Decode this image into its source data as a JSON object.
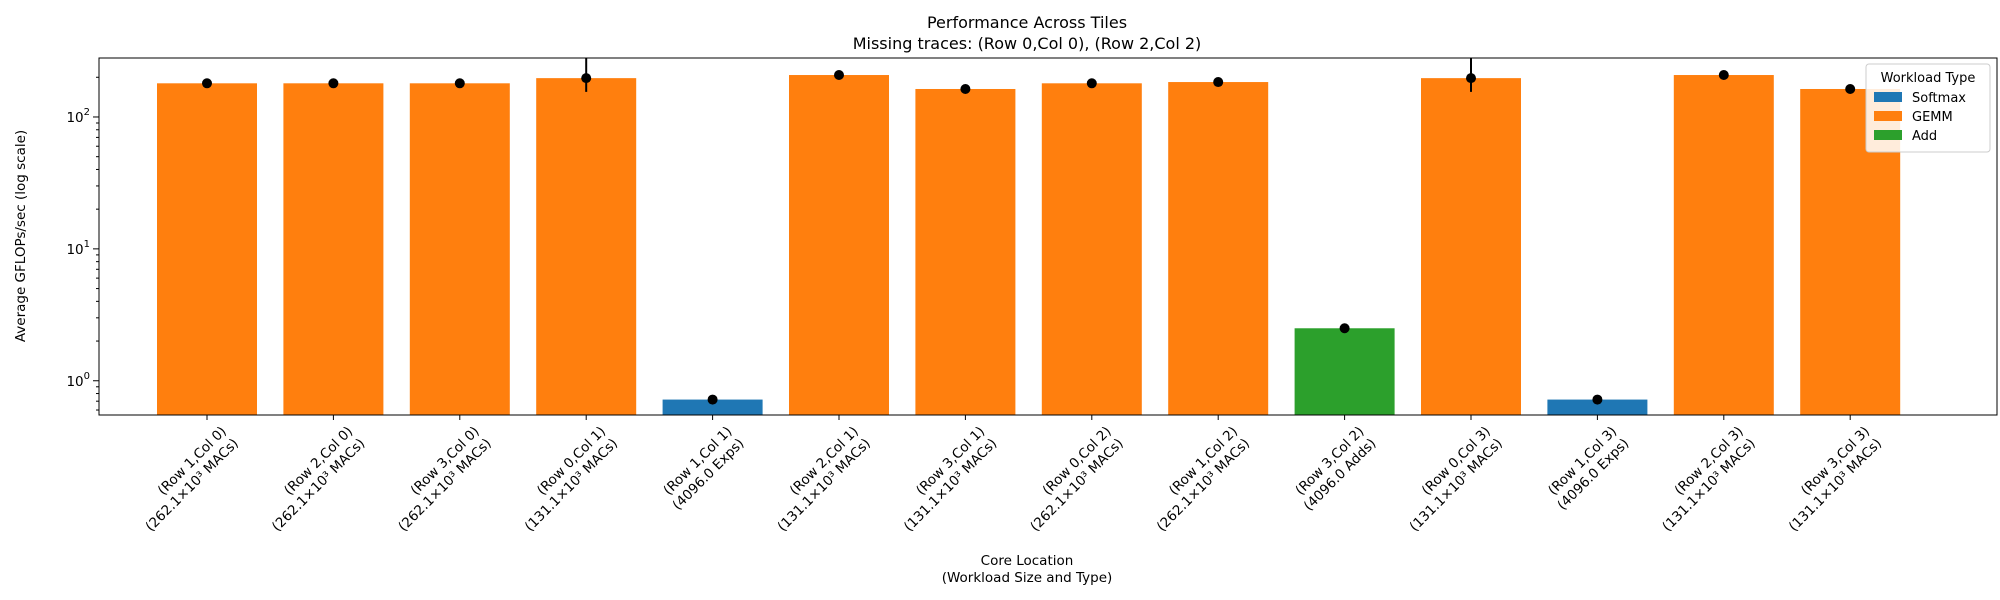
{
  "chart_data": {
    "type": "bar",
    "title": "Performance Across Tiles",
    "subtitle": "Missing traces: (Row 0,Col 0), (Row 2,Col 2)",
    "xlabel": "Core Location",
    "xlabel_sub": "(Workload Size and Type)",
    "ylabel": "Average GFLOPs/sec (log scale)",
    "yscale": "log",
    "ylim": [
      0.55,
      280
    ],
    "yticks": [
      {
        "value": 1,
        "base": "10",
        "exp": "0"
      },
      {
        "value": 10,
        "base": "10",
        "exp": "1"
      },
      {
        "value": 100,
        "base": "10",
        "exp": "2"
      }
    ],
    "legend": {
      "title": "Workload Type",
      "placement": "top-right",
      "entries": [
        {
          "name": "Softmax",
          "color": "#1f77b4"
        },
        {
          "name": "GEMM",
          "color": "#ff7f0e"
        },
        {
          "name": "Add",
          "color": "#2ca02c"
        }
      ]
    },
    "bars": [
      {
        "label": [
          "(Row 1,Col 0)",
          "(262.1×10³ MACs)"
        ],
        "value": 180,
        "type": "GEMM",
        "err": null
      },
      {
        "label": [
          "(Row 2,Col 0)",
          "(262.1×10³ MACs)"
        ],
        "value": 180,
        "type": "GEMM",
        "err": null
      },
      {
        "label": [
          "(Row 3,Col 0)",
          "(262.1×10³ MACs)"
        ],
        "value": 180,
        "type": "GEMM",
        "err": null
      },
      {
        "label": [
          "(Row 0,Col 1)",
          "(131.1×10³ MACs)"
        ],
        "value": 197,
        "type": "GEMM",
        "err": [
          155,
          285
        ]
      },
      {
        "label": [
          "(Row 1,Col 1)",
          "(4096.0 Exps)"
        ],
        "value": 0.72,
        "type": "Softmax",
        "err": null
      },
      {
        "label": [
          "(Row 2,Col 1)",
          "(131.1×10³ MACs)"
        ],
        "value": 208,
        "type": "GEMM",
        "err": null
      },
      {
        "label": [
          "(Row 3,Col 1)",
          "(131.1×10³ MACs)"
        ],
        "value": 163,
        "type": "GEMM",
        "err": null
      },
      {
        "label": [
          "(Row 0,Col 2)",
          "(262.1×10³ MACs)"
        ],
        "value": 180,
        "type": "GEMM",
        "err": null
      },
      {
        "label": [
          "(Row 1,Col 2)",
          "(262.1×10³ MACs)"
        ],
        "value": 184,
        "type": "GEMM",
        "err": null
      },
      {
        "label": [
          "(Row 3,Col 2)",
          "(4096.0 Adds)"
        ],
        "value": 2.5,
        "type": "Add",
        "err": null
      },
      {
        "label": [
          "(Row 0,Col 3)",
          "(131.1×10³ MACs)"
        ],
        "value": 197,
        "type": "GEMM",
        "err": [
          155,
          285
        ]
      },
      {
        "label": [
          "(Row 1,Col 3)",
          "(4096.0 Exps)"
        ],
        "value": 0.72,
        "type": "Softmax",
        "err": null
      },
      {
        "label": [
          "(Row 2,Col 3)",
          "(131.1×10³ MACs)"
        ],
        "value": 208,
        "type": "GEMM",
        "err": null
      },
      {
        "label": [
          "(Row 3,Col 3)",
          "(131.1×10³ MACs)"
        ],
        "value": 163,
        "type": "GEMM",
        "err": null
      }
    ]
  }
}
